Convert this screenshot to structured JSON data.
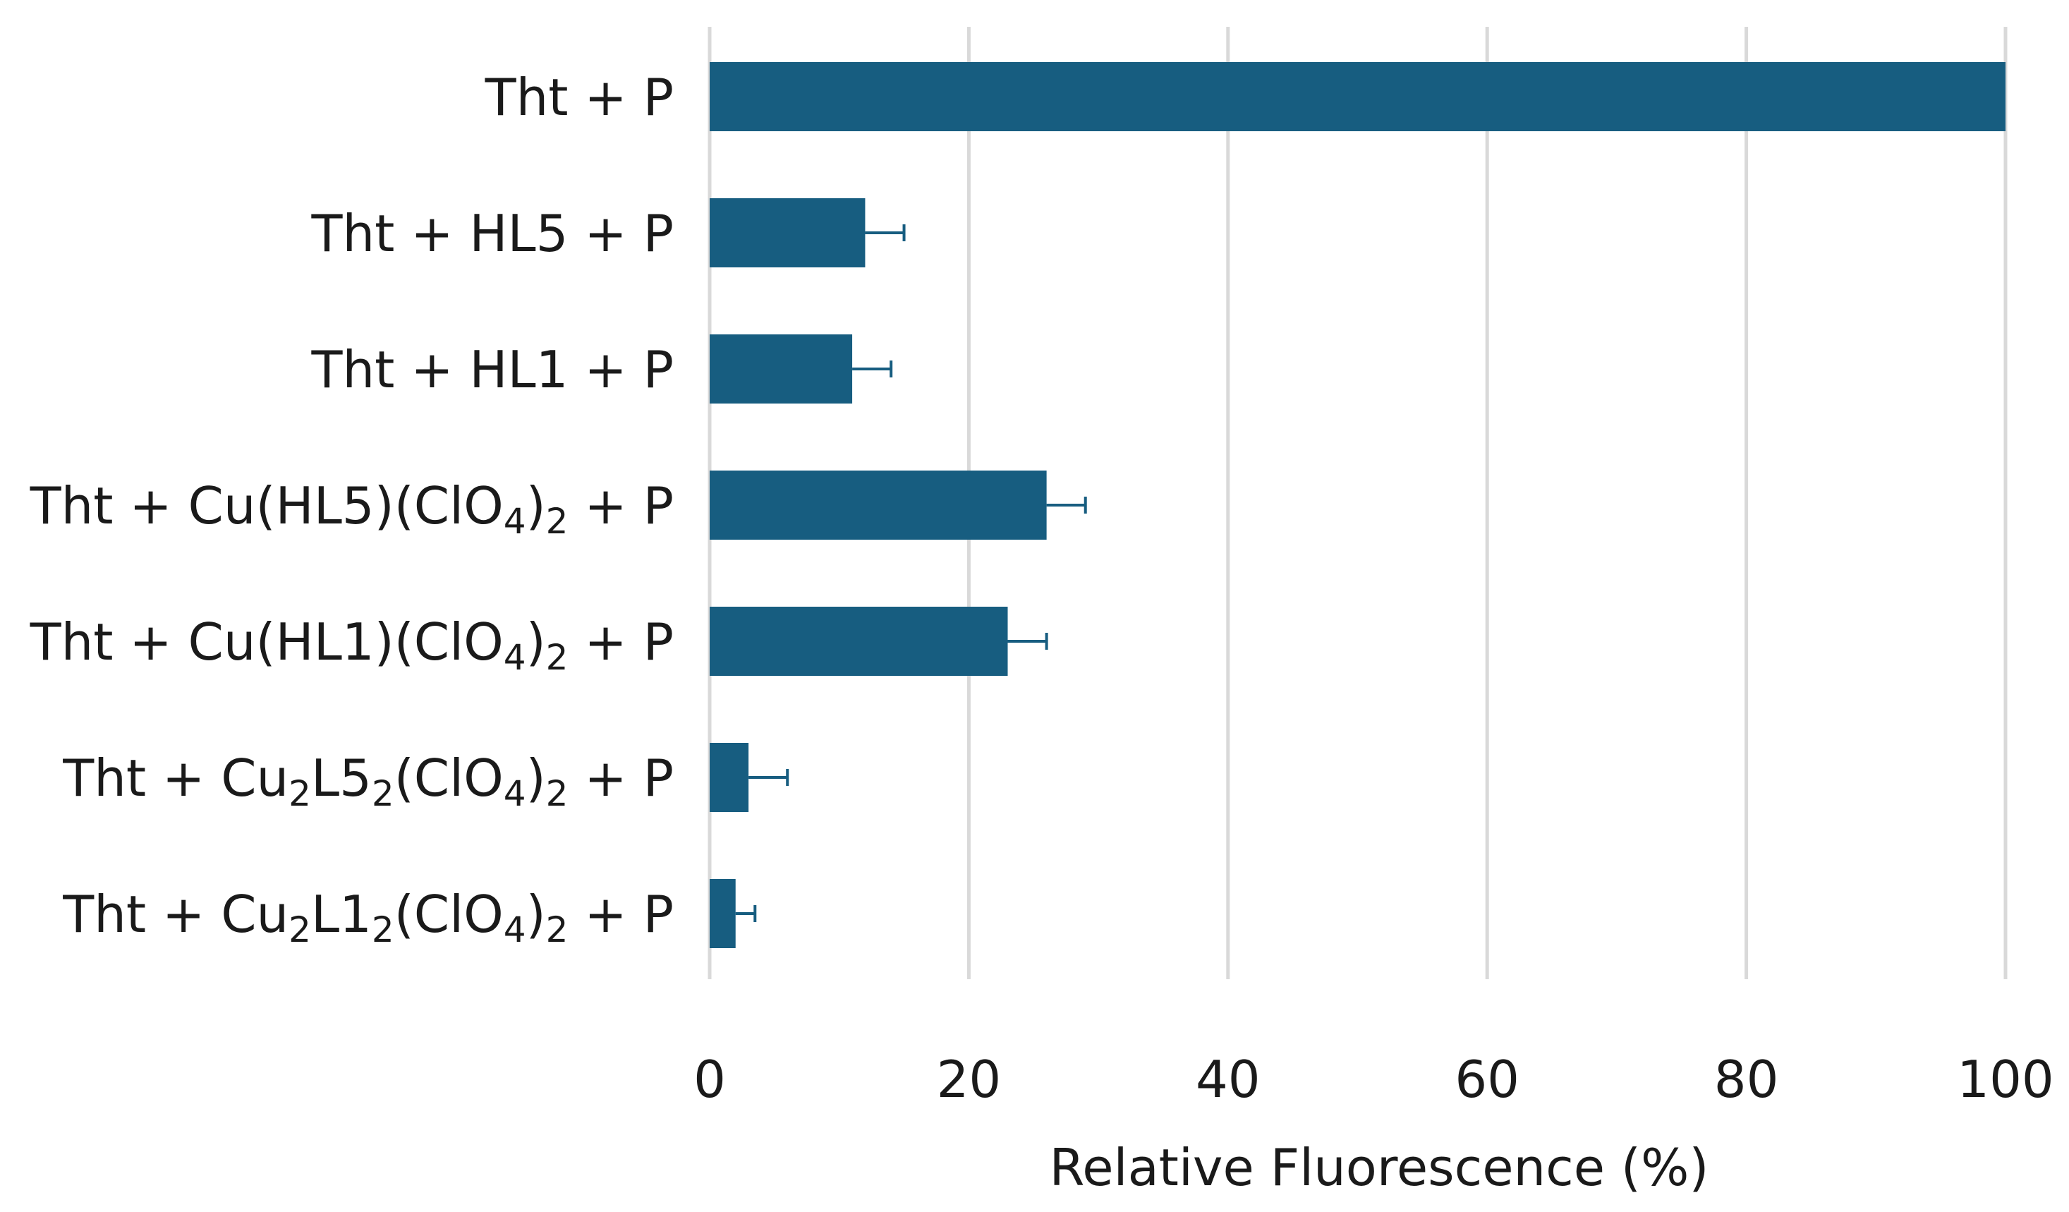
{
  "chart_data": {
    "type": "bar",
    "orientation": "horizontal",
    "categories": [
      "Tht + P",
      "Tht + HL5 + P",
      "Tht + HL1 + P",
      "Tht + Cu(HL5)(ClO4)2 + P",
      "Tht + Cu(HL1)(ClO4)2 + P",
      "Tht + Cu2L52(ClO4)2 + P",
      "Tht + Cu2L12(ClO4)2 + P"
    ],
    "category_labels": [
      [
        {
          "t": "Tht + P"
        }
      ],
      [
        {
          "t": "Tht + HL5 + P"
        }
      ],
      [
        {
          "t": "Tht + HL1 + P"
        }
      ],
      [
        {
          "t": "Tht + Cu(HL5)(ClO"
        },
        {
          "t": "4",
          "sub": true
        },
        {
          "t": ")"
        },
        {
          "t": "2",
          "sub": true
        },
        {
          "t": " + P"
        }
      ],
      [
        {
          "t": "Tht + Cu(HL1)(ClO"
        },
        {
          "t": "4",
          "sub": true
        },
        {
          "t": ")"
        },
        {
          "t": "2",
          "sub": true
        },
        {
          "t": " + P"
        }
      ],
      [
        {
          "t": "Tht + Cu"
        },
        {
          "t": "2",
          "sub": true
        },
        {
          "t": "L5"
        },
        {
          "t": "2",
          "sub": true
        },
        {
          "t": "(ClO"
        },
        {
          "t": "4",
          "sub": true
        },
        {
          "t": ")"
        },
        {
          "t": "2",
          "sub": true
        },
        {
          "t": " + P"
        }
      ],
      [
        {
          "t": "Tht + Cu"
        },
        {
          "t": "2",
          "sub": true
        },
        {
          "t": "L1"
        },
        {
          "t": "2",
          "sub": true
        },
        {
          "t": "(ClO"
        },
        {
          "t": "4",
          "sub": true
        },
        {
          "t": ")"
        },
        {
          "t": "2",
          "sub": true
        },
        {
          "t": " + P"
        }
      ]
    ],
    "values": [
      100,
      12,
      11,
      26,
      23,
      3,
      2
    ],
    "error": [
      0,
      3,
      3,
      3,
      3,
      3,
      1.5
    ],
    "xlabel": "Relative Fluorescence (%)",
    "ylabel": "",
    "title": "",
    "xlim": [
      0,
      100
    ],
    "xticks": [
      0,
      20,
      40,
      60,
      80,
      100
    ],
    "grid": "vertical",
    "legend": "none",
    "bar_color": "#175d80",
    "grid_color": "#d9d9d9"
  }
}
